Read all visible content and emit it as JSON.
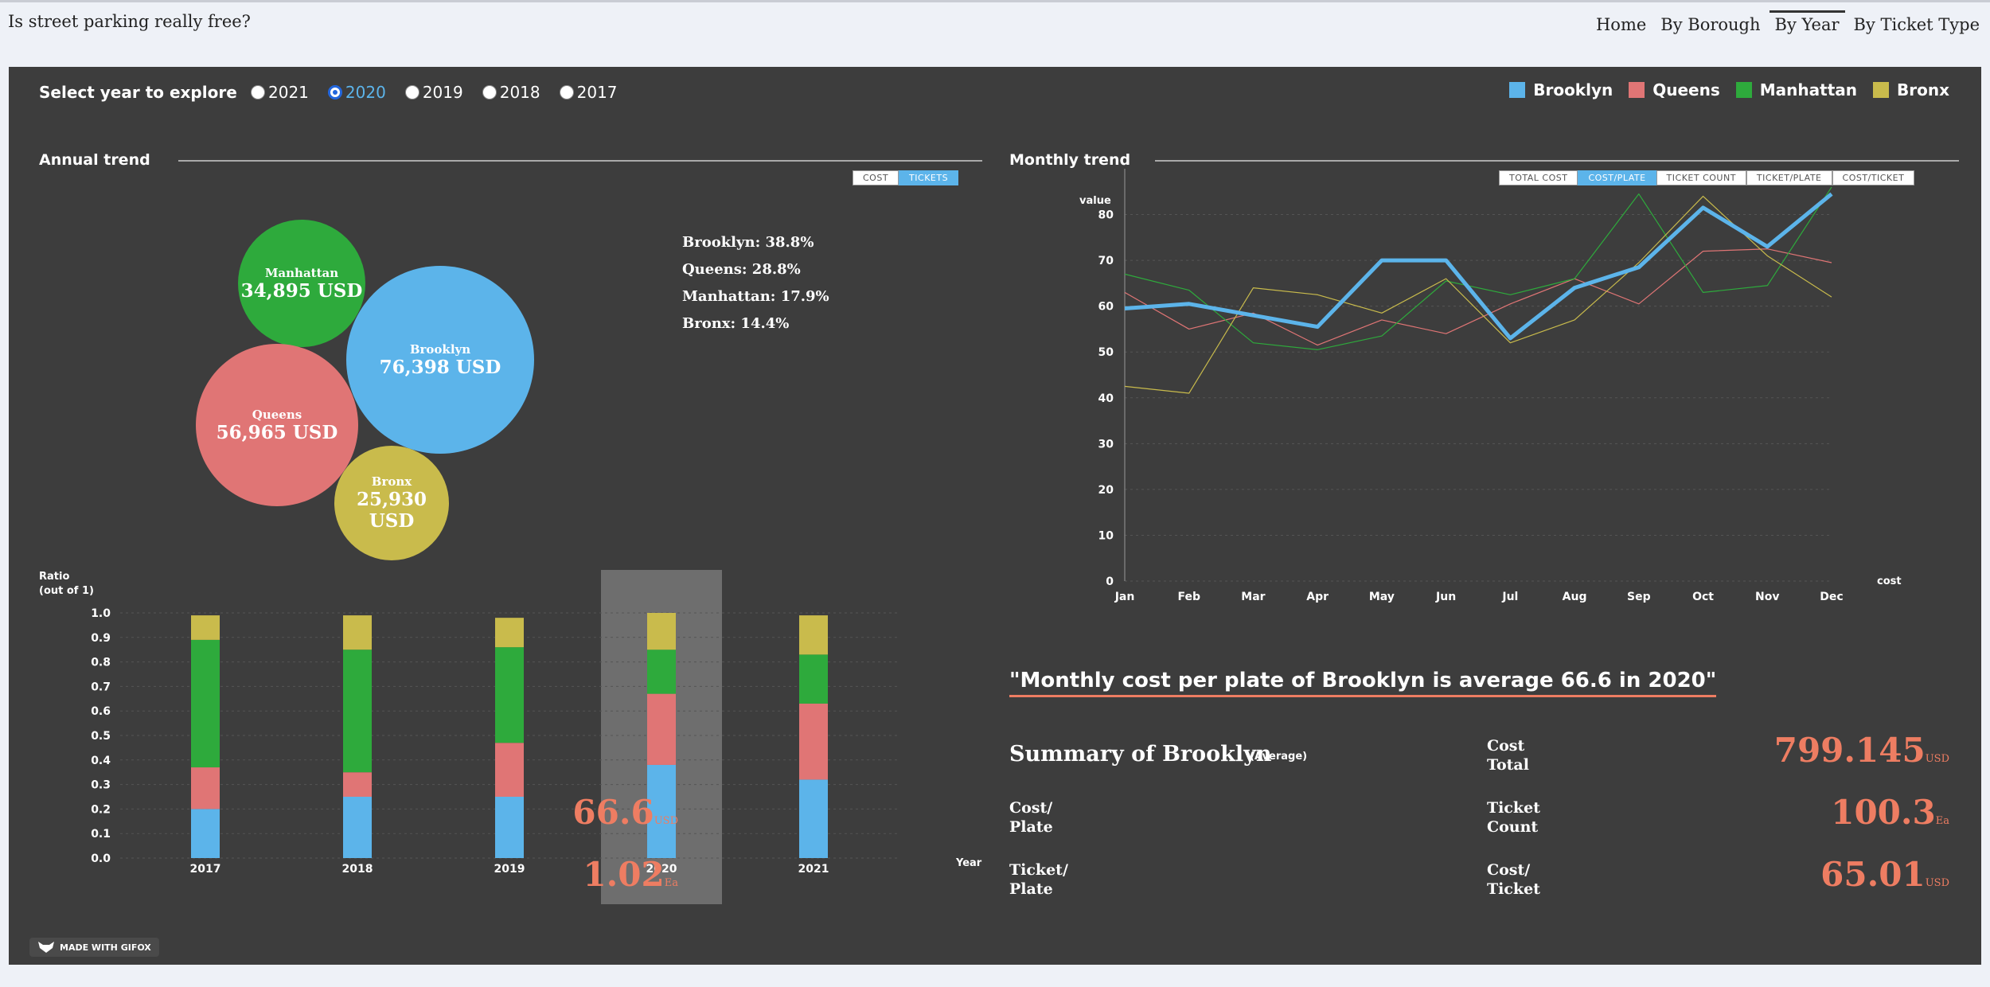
{
  "site_title": "Is street parking really free?",
  "nav": [
    "Home",
    "By Borough",
    "By Year",
    "By Ticket Type"
  ],
  "nav_active": "By Year",
  "year_select_label": "Select year to explore",
  "years": [
    "2021",
    "2020",
    "2019",
    "2018",
    "2017"
  ],
  "selected_year": "2020",
  "legend": [
    {
      "name": "Brooklyn",
      "color": "#5cb4ea"
    },
    {
      "name": "Queens",
      "color": "#e07575"
    },
    {
      "name": "Manhattan",
      "color": "#2eaa3c"
    },
    {
      "name": "Bronx",
      "color": "#c9bb4c"
    }
  ],
  "annual": {
    "title": "Annual trend",
    "toggle": [
      "COST",
      "TICKETS"
    ],
    "toggle_active": "TICKETS",
    "bubbles": [
      {
        "name": "Manhattan",
        "value": "34,895 USD",
        "color": "#2eaa3c"
      },
      {
        "name": "Brooklyn",
        "value": "76,398 USD",
        "color": "#5cb4ea"
      },
      {
        "name": "Queens",
        "value": "56,965 USD",
        "color": "#e07575"
      },
      {
        "name": "Bronx",
        "value": "25,930 USD",
        "color": "#c9bb4c"
      }
    ],
    "shares": [
      "Brooklyn: 38.8%",
      "Queens: 28.8%",
      "Manhattan: 17.9%",
      "Bronx: 14.4%"
    ]
  },
  "chart_data": [
    {
      "type": "bar",
      "stacked": true,
      "ylabel": "Ratio (out of 1)",
      "ylabel_lines": [
        "Ratio",
        "(out of 1)"
      ],
      "xlabel": "Year",
      "categories": [
        "2017",
        "2018",
        "2019",
        "2020",
        "2021"
      ],
      "highlighted": "2020",
      "ylim": [
        0,
        1.0
      ],
      "yticks": [
        "0.0",
        "0.1",
        "0.2",
        "0.3",
        "0.4",
        "0.5",
        "0.6",
        "0.7",
        "0.8",
        "0.9",
        "1.0"
      ],
      "series": [
        {
          "name": "Brooklyn",
          "color": "#5cb4ea",
          "values": [
            0.2,
            0.25,
            0.25,
            0.38,
            0.32
          ]
        },
        {
          "name": "Queens",
          "color": "#e07575",
          "values": [
            0.17,
            0.1,
            0.22,
            0.29,
            0.31
          ]
        },
        {
          "name": "Manhattan",
          "color": "#2eaa3c",
          "values": [
            0.52,
            0.5,
            0.39,
            0.18,
            0.2
          ]
        },
        {
          "name": "Bronx",
          "color": "#c9bb4c",
          "values": [
            0.1,
            0.14,
            0.12,
            0.15,
            0.16
          ]
        }
      ]
    },
    {
      "type": "line",
      "title": "Monthly trend",
      "ylabel": "value",
      "xlabel": "cost",
      "categories": [
        "Jan",
        "Feb",
        "Mar",
        "Apr",
        "May",
        "Jun",
        "Jul",
        "Aug",
        "Sep",
        "Oct",
        "Nov",
        "Dec"
      ],
      "ylim": [
        0,
        90
      ],
      "yticks": [
        "0",
        "10",
        "20",
        "30",
        "40",
        "50",
        "60",
        "70",
        "80"
      ],
      "toggle": [
        "TOTAL COST",
        "COST/PLATE",
        "TICKET COUNT",
        "TICKET/PLATE",
        "COST/TICKET"
      ],
      "toggle_active": "COST/PLATE",
      "highlighted_series": "Brooklyn",
      "series": [
        {
          "name": "Brooklyn",
          "color": "#5cb4ea",
          "values": [
            59.5,
            60.5,
            58,
            55.5,
            70,
            70,
            53,
            64,
            68.5,
            81.5,
            73,
            84.5
          ]
        },
        {
          "name": "Queens",
          "color": "#e07575",
          "values": [
            63,
            55,
            58.5,
            51.5,
            57,
            54,
            60.5,
            66,
            60.5,
            72,
            72.5,
            69.5
          ]
        },
        {
          "name": "Manhattan",
          "color": "#2eaa3c",
          "values": [
            67,
            63.5,
            52,
            50.5,
            53.5,
            65.5,
            62.5,
            66,
            84.5,
            63,
            64.5,
            86
          ]
        },
        {
          "name": "Bronx",
          "color": "#c9bb4c",
          "values": [
            42.5,
            41,
            64,
            62.5,
            58.5,
            66,
            52,
            57,
            69.5,
            84,
            71,
            62
          ]
        }
      ]
    }
  ],
  "quote": "\"Monthly cost per plate of Brooklyn is average 66.6 in 2020\"",
  "summary": {
    "title": "Summary of Brooklyn",
    "avg_note": "(Average)",
    "stats": [
      {
        "label_1": "Cost/",
        "label_2": "Plate",
        "value": "66.6",
        "unit": "USD"
      },
      {
        "label_1": "Ticket/",
        "label_2": "Plate",
        "value": "1.02",
        "unit": "Ea"
      },
      {
        "label_1": "Cost",
        "label_2": "Total",
        "value": "799.145",
        "unit": "USD"
      },
      {
        "label_1": "Ticket",
        "label_2": "Count",
        "value": "100.3",
        "unit": "Ea"
      },
      {
        "label_1": "Cost/",
        "label_2": "Ticket",
        "value": "65.01",
        "unit": "USD"
      }
    ]
  },
  "badge": "MADE WITH GIFOX"
}
